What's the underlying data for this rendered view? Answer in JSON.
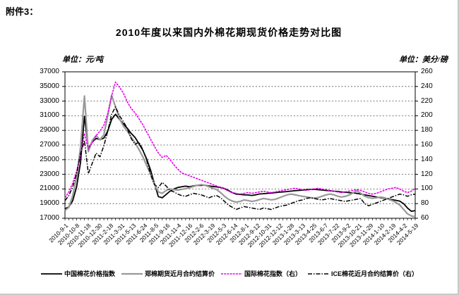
{
  "page": {
    "attachment_label": "附件3："
  },
  "chart_data": {
    "type": "line",
    "title": "2010年度以来国内外棉花期现货价格走势对比图",
    "grid": "horizontal-dotted",
    "legend_position": "bottom",
    "left_axis": {
      "unit_label": "单位：元/吨",
      "unit": "元/吨",
      "min": 17000,
      "max": 37000,
      "ticks": [
        37000,
        35000,
        33000,
        31000,
        29000,
        27000,
        25000,
        23000,
        21000,
        19000,
        17000
      ]
    },
    "right_axis": {
      "unit_label": "单位：美分/磅",
      "unit": "美分/磅",
      "min": 60,
      "max": 260,
      "ticks": [
        260,
        240,
        220,
        200,
        180,
        160,
        140,
        120,
        100,
        80,
        60
      ]
    },
    "x_tick_labels": [
      "2010-9-1",
      "2010-10-8",
      "2010-11-18",
      "2010-12-30",
      "2011-2-18",
      "2011-3-31",
      "2011-5-13",
      "2011-6-24",
      "2011-8-5",
      "2011-9-16",
      "2011-11-4",
      "2011-12-16",
      "2012-2-6",
      "2012-3-19",
      "2012-5-3",
      "2012-6-14",
      "2012-8-1",
      "2012-9-12",
      "2012-10-31",
      "2012-12-12",
      "2013-1-28",
      "2013-3-13",
      "2013-4-25",
      "2013-6-7",
      "2013-7-22",
      "2013-9-2",
      "2013-10-21",
      "2013-11-29",
      "2014-1-10",
      "2014-2-19",
      "2014-4-2",
      "2014-5-19"
    ],
    "series": [
      {
        "name": "中国棉花价格指数",
        "axis": "left",
        "color": "#000000",
        "style": "solid",
        "width": 1.8,
        "values": [
          18300,
          18550,
          19400,
          21300,
          24600,
          30900,
          26600,
          27400,
          27900,
          27750,
          27950,
          28900,
          30500,
          31200,
          30500,
          29900,
          29300,
          28600,
          28050,
          27200,
          26300,
          25100,
          23600,
          21700,
          19950,
          19800,
          20250,
          20700,
          21000,
          21200,
          21300,
          21380,
          21300,
          21420,
          21500,
          21480,
          21520,
          21400,
          21350,
          21280,
          21200,
          21050,
          20800,
          20500,
          20300,
          20260,
          20200,
          20180,
          20120,
          20200,
          20320,
          20360,
          20400,
          20440,
          20500,
          20560,
          20600,
          20640,
          20700,
          20760,
          20800,
          20840,
          20900,
          20940,
          20960,
          20900,
          20860,
          20800,
          20760,
          20700,
          20660,
          20600,
          20560,
          20500,
          20460,
          20400,
          20300,
          20200,
          20100,
          20000,
          19900,
          19800,
          19750,
          19650,
          19550,
          19450,
          19350,
          19000,
          18400,
          17950,
          18050
        ]
      },
      {
        "name": "郑棉期货近月合约结算价",
        "axis": "left",
        "color": "#999999",
        "style": "solid",
        "width": 2.2,
        "values": [
          18050,
          18500,
          20100,
          22600,
          26700,
          33700,
          26100,
          27600,
          28300,
          27700,
          28400,
          31000,
          33800,
          32200,
          30600,
          29600,
          28900,
          28100,
          27300,
          26400,
          25400,
          24200,
          23000,
          21600,
          20600,
          20400,
          20800,
          21000,
          20900,
          20850,
          20950,
          21050,
          21150,
          21350,
          21500,
          21600,
          21500,
          21300,
          21100,
          20900,
          20500,
          20000,
          19600,
          19350,
          19200,
          19300,
          19500,
          19420,
          19300,
          19380,
          19560,
          19700,
          19620,
          19520,
          19580,
          19780,
          19980,
          20180,
          20300,
          20220,
          20100,
          20000,
          19920,
          19820,
          19760,
          19820,
          20000,
          20180,
          20300,
          20220,
          20020,
          19900,
          19980,
          20160,
          20460,
          20760,
          20420,
          20020,
          19820,
          19720,
          19800,
          19880,
          19820,
          19620,
          19420,
          19180,
          18820,
          18220,
          17620,
          17320,
          17200
        ]
      },
      {
        "name": "国际棉花指数（右）",
        "axis": "right",
        "color": "#ee00ee",
        "style": "dense-dot",
        "width": 1.6,
        "values": [
          88,
          96,
          108,
          124,
          146,
          176,
          154,
          163,
          173,
          179,
          187,
          203,
          227,
          246,
          239,
          231,
          219,
          210,
          204,
          196,
          188,
          178,
          168,
          158,
          149,
          143,
          146,
          140,
          133,
          127,
          122,
          120,
          118,
          116,
          114,
          112,
          110,
          108,
          106,
          104,
          102,
          100,
          97,
          95,
          94,
          93,
          94,
          95,
          94,
          95,
          96,
          97,
          96,
          95,
          96,
          97,
          98,
          99,
          100,
          101,
          100,
          99,
          98,
          99,
          100,
          101,
          100,
          99,
          98,
          97,
          96,
          95,
          96,
          97,
          98,
          99,
          98,
          96,
          94,
          93,
          94,
          96,
          98,
          100,
          101,
          102,
          100,
          97,
          95,
          97,
          101
        ]
      },
      {
        "name": "ICE棉花近月合约结算价（右）",
        "axis": "right",
        "color": "#000000",
        "style": "dashdot",
        "width": 1.5,
        "values": [
          84,
          91,
          103,
          121,
          148,
          166,
          121,
          135,
          149,
          144,
          159,
          179,
          202,
          212,
          200,
          192,
          183,
          169,
          161,
          164,
          154,
          139,
          120,
          106,
          102,
          109,
          104,
          98,
          96,
          93,
          91,
          90,
          92,
          94,
          93,
          92,
          90,
          88,
          90,
          91,
          88,
          83,
          78,
          75,
          72,
          74,
          76,
          75,
          74,
          73,
          72,
          74,
          73,
          72,
          74,
          76,
          77,
          78,
          80,
          82,
          84,
          85,
          87,
          88,
          87,
          86,
          85,
          86,
          87,
          86,
          85,
          84,
          83,
          84,
          85,
          86,
          87,
          80,
          77,
          79,
          81,
          83,
          85,
          87,
          89,
          91,
          93,
          92,
          90,
          92,
          93
        ]
      }
    ]
  }
}
